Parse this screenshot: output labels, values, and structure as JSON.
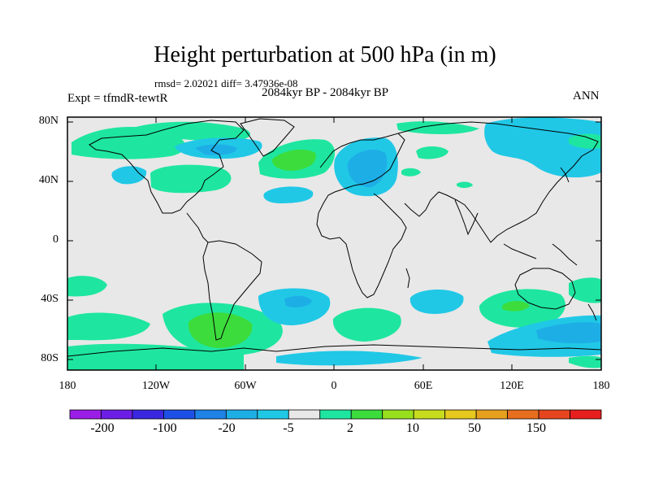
{
  "title": "Height perturbation at 500 hPa (in m)",
  "stats": "rmsd= 2.02021 diff= 3.47936e-08",
  "period": "2084kyr BP - 2084kyr BP",
  "experiment": "Expt = tfmdR-tewtR",
  "season": "ANN",
  "lat_labels": [
    "80N",
    "40N",
    "0",
    "40S",
    "80S"
  ],
  "lon_labels": [
    "180",
    "120W",
    "60W",
    "0",
    "60E",
    "120E",
    "180"
  ],
  "colorbar": {
    "labels": [
      "-200",
      "-100",
      "-20",
      "-5",
      "2",
      "10",
      "50",
      "150"
    ],
    "colors": [
      "#9a1ee6",
      "#6c1ee6",
      "#3a28e0",
      "#1e50e6",
      "#1e82e6",
      "#1eaee6",
      "#20c8e6",
      "#e8e8e8",
      "#1ee6a0",
      "#3cdc3c",
      "#98e01e",
      "#c8dc1e",
      "#e6c81e",
      "#e6a01e",
      "#e66e1e",
      "#e6461e",
      "#e61e1e"
    ]
  }
}
